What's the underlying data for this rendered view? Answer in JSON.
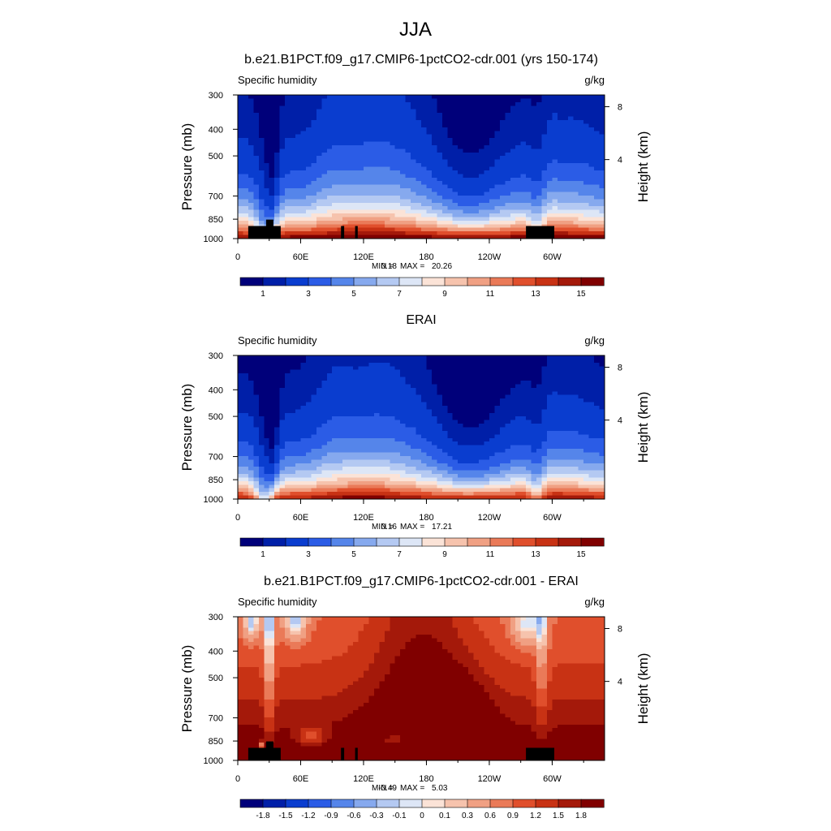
{
  "figure": {
    "title": "JJA"
  },
  "colors": {
    "full": [
      "#00007a",
      "#001fa8",
      "#0a3dcf",
      "#2b5ce6",
      "#5585ea",
      "#86a9ee",
      "#b4c9f2",
      "#dde6f6",
      "#fbe3d7",
      "#f6c3ad",
      "#f0a083",
      "#ea7a58",
      "#e04f2c",
      "#c83214",
      "#a4190a",
      "#800000"
    ],
    "diff": [
      "#00007a",
      "#001fa8",
      "#0a3dcf",
      "#2b5ce6",
      "#5585ea",
      "#86a9ee",
      "#b4c9f2",
      "#dde6f6",
      "#fbe3d7",
      "#f6c3ad",
      "#f0a083",
      "#ea7a58",
      "#e04f2c",
      "#c83214",
      "#a4190a",
      "#800000"
    ]
  },
  "chart_data": [
    {
      "type": "heatmap",
      "title": "b.e21.B1PCT.f09_g17.CMIP6-1pctCO2-cdr.001 (yrs 150-174)",
      "left_label": "Specific humidity",
      "right_label": "g/kg",
      "xlabel": "",
      "ylabel": "Pressure (mb)",
      "y2label": "Height (km)",
      "x_ticks": [
        "0",
        "60E",
        "120E",
        "180",
        "120W",
        "60W"
      ],
      "y_ticks": [
        "300",
        "400",
        "500",
        "700",
        "850",
        "1000"
      ],
      "y2_ticks": [
        "8",
        "4"
      ],
      "stats": {
        "min_label": "MIN =",
        "min": "0.18",
        "max_label": "MAX =",
        "max": "20.26"
      },
      "colorbar": {
        "levels": [
          "1",
          "3",
          "5",
          "7",
          "9",
          "11",
          "13",
          "15"
        ]
      },
      "xlim": [
        0,
        350
      ],
      "ylim": [
        1000,
        300
      ],
      "kind": "model",
      "dmin": 0.18,
      "dmax": 20.26
    },
    {
      "type": "heatmap",
      "title": "ERAI",
      "left_label": "Specific humidity",
      "right_label": "g/kg",
      "xlabel": "",
      "ylabel": "Pressure (mb)",
      "y2label": "Height (km)",
      "x_ticks": [
        "0",
        "60E",
        "120E",
        "180",
        "120W",
        "60W"
      ],
      "y_ticks": [
        "300",
        "400",
        "500",
        "700",
        "850",
        "1000"
      ],
      "y2_ticks": [
        "8",
        "4"
      ],
      "stats": {
        "min_label": "MIN =",
        "min": "0.16",
        "max_label": "MAX =",
        "max": "17.21"
      },
      "colorbar": {
        "levels": [
          "1",
          "3",
          "5",
          "7",
          "9",
          "11",
          "13",
          "15"
        ]
      },
      "xlim": [
        0,
        350
      ],
      "ylim": [
        1000,
        300
      ],
      "kind": "obs",
      "dmin": 0.16,
      "dmax": 17.21
    },
    {
      "type": "heatmap",
      "title": "b.e21.B1PCT.f09_g17.CMIP6-1pctCO2-cdr.001 - ERAI",
      "left_label": "Specific humidity",
      "right_label": "g/kg",
      "xlabel": "",
      "ylabel": "Pressure (mb)",
      "y2label": "Height (km)",
      "x_ticks": [
        "0",
        "60E",
        "120E",
        "180",
        "120W",
        "60W"
      ],
      "y_ticks": [
        "300",
        "400",
        "500",
        "700",
        "850",
        "1000"
      ],
      "y2_ticks": [
        "8",
        "4"
      ],
      "stats": {
        "min_label": "MIN =",
        "min": "-0.49",
        "max_label": "MAX =",
        "max": "5.03"
      },
      "colorbar": {
        "levels": [
          "-1.8",
          "-1.5",
          "-1.2",
          "-0.9",
          "-0.6",
          "-0.3",
          "-0.1",
          "0",
          "0.1",
          "0.3",
          "0.6",
          "0.9",
          "1.2",
          "1.5",
          "1.8"
        ]
      },
      "xlim": [
        0,
        350
      ],
      "ylim": [
        1000,
        300
      ],
      "kind": "diff",
      "dmin": -0.49,
      "dmax": 5.03
    }
  ]
}
